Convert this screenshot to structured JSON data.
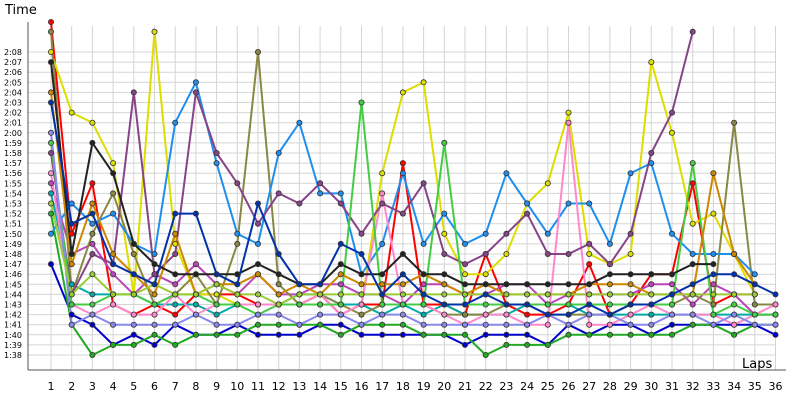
{
  "chart_data": {
    "type": "line",
    "title": "",
    "ylabel": "Time",
    "xlabel": "Laps",
    "x": [
      1,
      2,
      3,
      4,
      5,
      6,
      7,
      8,
      9,
      10,
      11,
      12,
      13,
      14,
      15,
      16,
      17,
      18,
      19,
      20,
      21,
      22,
      23,
      24,
      25,
      26,
      27,
      28,
      29,
      30,
      31,
      32,
      33,
      34,
      35,
      36
    ],
    "y_ticks": [
      "1:38",
      "1:39",
      "1:40",
      "1:41",
      "1:42",
      "1:43",
      "1:44",
      "1:45",
      "1:46",
      "1:47",
      "1:48",
      "1:49",
      "1:50",
      "1:51",
      "1:52",
      "1:53",
      "1:54",
      "1:55",
      "1:56",
      "1:57",
      "1:58",
      "1:59",
      "2:00",
      "2:01",
      "2:02",
      "2:03",
      "2:04",
      "2:05",
      "2:06",
      "2:07",
      "2:08"
    ],
    "ylim": [
      "1:38",
      "2:08"
    ],
    "grid": true,
    "series": [
      {
        "color": "#ff0000",
        "values": [
          135,
          110,
          115,
          103,
          102,
          103,
          102,
          104,
          104,
          104,
          103,
          103,
          103,
          104,
          102,
          103,
          103,
          117,
          103,
          103,
          102,
          108,
          103,
          102,
          102,
          103,
          107,
          102,
          103,
          106,
          106,
          115,
          103,
          104,
          104,
          null
        ]
      },
      {
        "color": "#0000cc",
        "values": [
          107,
          102,
          101,
          99,
          100,
          99,
          101,
          100,
          100,
          101,
          100,
          100,
          100,
          101,
          101,
          100,
          100,
          100,
          100,
          100,
          99,
          100,
          100,
          100,
          99,
          101,
          100,
          101,
          101,
          100,
          101,
          101,
          101,
          101,
          101,
          100
        ]
      },
      {
        "color": "#22aa22",
        "values": [
          112,
          101,
          98,
          99,
          99,
          100,
          99,
          100,
          100,
          100,
          101,
          101,
          101,
          101,
          100,
          101,
          101,
          101,
          100,
          100,
          100,
          98,
          99,
          99,
          99,
          100,
          100,
          100,
          100,
          100,
          100,
          101,
          101,
          100,
          101,
          101
        ]
      },
      {
        "color": "#dddd00",
        "values": [
          128,
          122,
          121,
          117,
          104,
          130,
          109,
          104,
          104,
          103,
          103,
          103,
          103,
          103,
          103,
          103,
          116,
          124,
          125,
          110,
          106,
          106,
          108,
          113,
          115,
          122,
          108,
          107,
          108,
          127,
          120,
          111,
          112,
          108,
          104,
          null
        ]
      },
      {
        "color": "#bb44bb",
        "values": [
          115,
          108,
          109,
          106,
          104,
          106,
          105,
          107,
          105,
          104,
          106,
          104,
          104,
          105,
          105,
          104,
          104,
          103,
          105,
          105,
          104,
          104,
          105,
          105,
          103,
          104,
          104,
          104,
          104,
          105,
          105,
          103,
          105,
          104,
          102,
          102
        ]
      },
      {
        "color": "#00aaaa",
        "values": [
          114,
          105,
          104,
          104,
          104,
          103,
          103,
          103,
          102,
          103,
          103,
          103,
          104,
          104,
          103,
          103,
          102,
          103,
          102,
          103,
          102,
          102,
          102,
          103,
          103,
          103,
          102,
          102,
          102,
          102,
          102,
          102,
          102,
          102,
          102,
          102
        ]
      },
      {
        "color": "#888844",
        "values": [
          130,
          104,
          110,
          114,
          108,
          103,
          104,
          106,
          103,
          109,
          128,
          105,
          103,
          104,
          103,
          102,
          103,
          103,
          103,
          102,
          102,
          102,
          103,
          103,
          102,
          102,
          102,
          102,
          103,
          103,
          103,
          104,
          103,
          121,
          103,
          103
        ]
      },
      {
        "color": "#1f8fef",
        "values": [
          110,
          113,
          111,
          112,
          109,
          108,
          121,
          125,
          117,
          110,
          109,
          118,
          121,
          114,
          114,
          106,
          109,
          116,
          109,
          112,
          109,
          110,
          116,
          113,
          110,
          113,
          113,
          109,
          116,
          117,
          110,
          108,
          108,
          108,
          106,
          null
        ]
      },
      {
        "color": "#ff88cc",
        "values": [
          116,
          103,
          102,
          103,
          102,
          102,
          104,
          102,
          103,
          103,
          103,
          103,
          103,
          104,
          102,
          103,
          114,
          103,
          103,
          102,
          101,
          102,
          102,
          101,
          101,
          121,
          101,
          101,
          102,
          103,
          102,
          102,
          102,
          101,
          102,
          103
        ]
      },
      {
        "color": "#884488",
        "values": [
          118,
          104,
          108,
          107,
          124,
          106,
          108,
          124,
          118,
          115,
          111,
          114,
          113,
          115,
          113,
          110,
          113,
          112,
          115,
          108,
          107,
          108,
          110,
          112,
          108,
          108,
          109,
          107,
          110,
          118,
          122,
          130,
          null,
          null,
          null,
          null
        ]
      },
      {
        "color": "#44cc44",
        "values": [
          119,
          103,
          103,
          104,
          104,
          103,
          104,
          104,
          103,
          103,
          102,
          103,
          103,
          103,
          103,
          123,
          103,
          103,
          103,
          119,
          103,
          103,
          103,
          103,
          103,
          103,
          103,
          103,
          103,
          103,
          103,
          117,
          102,
          103,
          102,
          102
        ]
      },
      {
        "color": "#cc8800",
        "values": [
          124,
          107,
          113,
          108,
          106,
          104,
          110,
          104,
          105,
          105,
          106,
          104,
          105,
          104,
          106,
          105,
          105,
          105,
          106,
          105,
          104,
          105,
          104,
          104,
          104,
          104,
          105,
          105,
          105,
          104,
          104,
          104,
          116,
          108,
          105,
          null
        ]
      },
      {
        "color": "#222222",
        "values": [
          127,
          108,
          119,
          116,
          109,
          107,
          106,
          106,
          106,
          106,
          107,
          106,
          105,
          105,
          107,
          106,
          106,
          108,
          106,
          106,
          105,
          105,
          105,
          105,
          105,
          105,
          105,
          106,
          106,
          106,
          106,
          107,
          107,
          null,
          null,
          null
        ]
      },
      {
        "color": "#8888ee",
        "values": [
          120,
          101,
          102,
          101,
          101,
          101,
          101,
          102,
          101,
          101,
          102,
          102,
          101,
          102,
          102,
          101,
          102,
          102,
          101,
          101,
          101,
          101,
          101,
          101,
          102,
          101,
          102,
          102,
          101,
          101,
          102,
          102,
          101,
          102,
          101,
          101
        ]
      },
      {
        "color": "#99cc33",
        "values": [
          113,
          104,
          106,
          104,
          104,
          105,
          104,
          104,
          105,
          104,
          104,
          103,
          104,
          104,
          104,
          104,
          104,
          104,
          104,
          104,
          104,
          104,
          104,
          104,
          104,
          104,
          104,
          104,
          104,
          104,
          104,
          104,
          104,
          104,
          104,
          null
        ]
      },
      {
        "color": "#0033aa",
        "values": [
          123,
          111,
          112,
          107,
          106,
          105,
          112,
          112,
          106,
          105,
          113,
          108,
          105,
          105,
          109,
          108,
          104,
          106,
          104,
          103,
          103,
          104,
          103,
          103,
          102,
          102,
          103,
          102,
          103,
          103,
          104,
          105,
          106,
          106,
          105,
          104
        ]
      }
    ]
  }
}
